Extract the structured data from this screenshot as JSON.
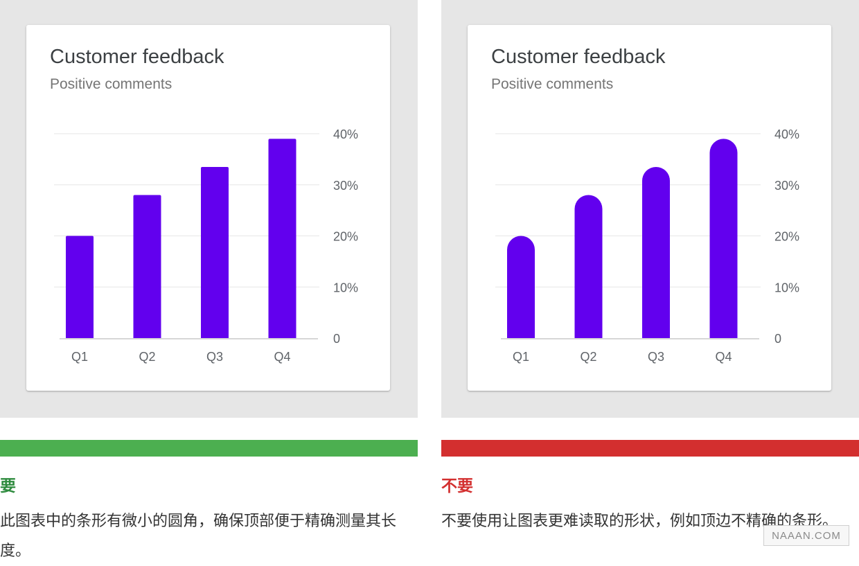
{
  "panels": [
    {
      "card_title": "Customer feedback",
      "card_subtitle": "Positive comments",
      "bar_style": "slightly-rounded",
      "status_color": "#4caf50",
      "caption_color": "#2e8b3e",
      "caption_title": "要",
      "caption_text": "此图表中的条形有微小的圆角，确保顶部便于精确测量其长度。"
    },
    {
      "card_title": "Customer feedback",
      "card_subtitle": "Positive comments",
      "bar_style": "fully-rounded",
      "status_color": "#d32f2f",
      "caption_color": "#d32f2f",
      "caption_title": "不要",
      "caption_text": "不要使用让图表更难读取的形状，例如顶边不精确的条形。"
    }
  ],
  "chart_data": [
    {
      "type": "bar",
      "title": "Customer feedback",
      "subtitle": "Positive comments",
      "categories": [
        "Q1",
        "Q2",
        "Q3",
        "Q4"
      ],
      "values": [
        20,
        28,
        33.5,
        39
      ],
      "ylim": [
        0,
        40
      ],
      "yticks": [
        "0",
        "10%",
        "20%",
        "30%",
        "40%"
      ],
      "y_axis_side": "right",
      "grid": true,
      "bar_color": "#6200ee"
    },
    {
      "type": "bar",
      "title": "Customer feedback",
      "subtitle": "Positive comments",
      "categories": [
        "Q1",
        "Q2",
        "Q3",
        "Q4"
      ],
      "values": [
        20,
        28,
        33.5,
        39
      ],
      "ylim": [
        0,
        40
      ],
      "yticks": [
        "0",
        "10%",
        "20%",
        "30%",
        "40%"
      ],
      "y_axis_side": "right",
      "grid": true,
      "bar_color": "#6200ee"
    }
  ],
  "watermark": "NAAAN.COM"
}
